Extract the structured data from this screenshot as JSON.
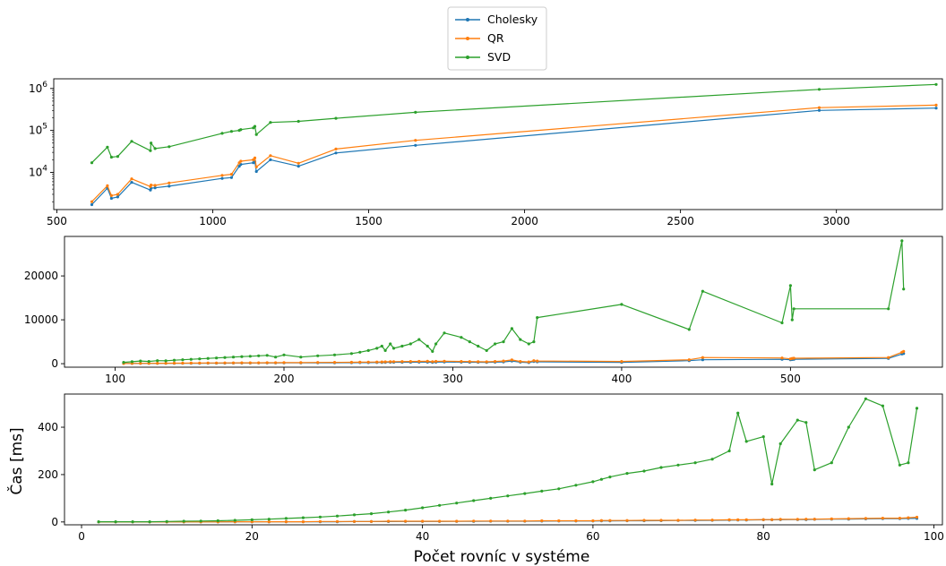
{
  "figure": {
    "xlabel": "Počet rovníc v systéme",
    "ylabel": "Čas [ms]"
  },
  "legend": [
    {
      "name": "Cholesky",
      "color": "#1f77b4"
    },
    {
      "name": "QR",
      "color": "#ff7f0e"
    },
    {
      "name": "SVD",
      "color": "#2ca02c"
    }
  ],
  "chart_data": [
    {
      "type": "line",
      "yscale": "log",
      "xlim": [
        490,
        3340
      ],
      "ylim": [
        1300,
        1700000
      ],
      "xticks": [
        500,
        1000,
        1500,
        2000,
        2500,
        3000
      ],
      "xtick_labels": [
        "500",
        "1000",
        "1500",
        "2000",
        "2500",
        "3000"
      ],
      "yticks": [
        10000,
        100000,
        1000000
      ],
      "ytick_labels": [
        "10^4",
        "10^5",
        "10^6"
      ],
      "grid": false,
      "legend": "top-center, above the figure",
      "x": [
        612,
        662,
        675,
        695,
        740,
        800,
        802,
        815,
        860,
        1030,
        1060,
        1085,
        1090,
        1130,
        1135,
        1140,
        1185,
        1275,
        1395,
        1650,
        2945,
        3320
      ],
      "series": [
        {
          "name": "Cholesky",
          "color": "#1f77b4",
          "values": [
            1700,
            4200,
            2400,
            2600,
            5800,
            3800,
            4200,
            4300,
            4700,
            7200,
            7500,
            14000,
            15500,
            17000,
            18000,
            10500,
            20000,
            14000,
            29000,
            44000,
            300000,
            340000
          ]
        },
        {
          "name": "QR",
          "color": "#ff7f0e",
          "values": [
            2000,
            4800,
            2800,
            3000,
            7000,
            4600,
            5000,
            4900,
            5600,
            8500,
            9000,
            17000,
            18500,
            20000,
            22000,
            13500,
            25000,
            16500,
            36000,
            58000,
            350000,
            400000
          ]
        },
        {
          "name": "SVD",
          "color": "#2ca02c",
          "values": [
            17000,
            40000,
            23000,
            24000,
            55000,
            33000,
            50000,
            37000,
            41000,
            85000,
            95000,
            100000,
            105000,
            115000,
            125000,
            80000,
            155000,
            165000,
            195000,
            270000,
            950000,
            1250000
          ]
        }
      ]
    },
    {
      "type": "line",
      "xlim": [
        70,
        590
      ],
      "ylim": [
        -800,
        29000
      ],
      "xticks": [
        100,
        200,
        300,
        400,
        500
      ],
      "xtick_labels": [
        "100",
        "200",
        "300",
        "400",
        "500"
      ],
      "yticks": [
        0,
        10000,
        20000
      ],
      "ytick_labels": [
        "0",
        "10000",
        "20000"
      ],
      "grid": false,
      "x": [
        105,
        110,
        115,
        120,
        125,
        130,
        135,
        140,
        145,
        150,
        155,
        160,
        165,
        170,
        175,
        180,
        185,
        190,
        195,
        200,
        210,
        220,
        230,
        240,
        245,
        250,
        255,
        258,
        260,
        263,
        265,
        270,
        275,
        280,
        285,
        288,
        290,
        295,
        305,
        310,
        315,
        320,
        325,
        330,
        335,
        340,
        345,
        348,
        350,
        400,
        440,
        448,
        495,
        500,
        501,
        502,
        558,
        566,
        567
      ],
      "series": [
        {
          "name": "Cholesky",
          "color": "#1f77b4",
          "values": [
            30,
            40,
            50,
            60,
            60,
            70,
            80,
            90,
            90,
            100,
            110,
            110,
            120,
            130,
            130,
            140,
            150,
            150,
            160,
            170,
            180,
            200,
            210,
            230,
            240,
            250,
            260,
            280,
            300,
            320,
            320,
            330,
            330,
            350,
            350,
            300,
            350,
            380,
            350,
            330,
            320,
            300,
            350,
            400,
            600,
            350,
            250,
            500,
            420,
            300,
            700,
            900,
            1000,
            900,
            950,
            1000,
            1200,
            2200,
            2300
          ]
        },
        {
          "name": "QR",
          "color": "#ff7f0e",
          "values": [
            40,
            60,
            70,
            80,
            90,
            100,
            110,
            120,
            130,
            140,
            150,
            160,
            170,
            180,
            190,
            200,
            210,
            220,
            230,
            240,
            250,
            280,
            300,
            320,
            340,
            360,
            380,
            400,
            420,
            440,
            460,
            480,
            500,
            520,
            540,
            460,
            520,
            560,
            500,
            480,
            450,
            420,
            500,
            600,
            850,
            500,
            400,
            700,
            600,
            500,
            900,
            1400,
            1300,
            1100,
            1200,
            1250,
            1400,
            2600,
            2800
          ]
        },
        {
          "name": "SVD",
          "color": "#2ca02c",
          "values": [
            300,
            450,
            600,
            500,
            700,
            650,
            800,
            900,
            1000,
            1100,
            1200,
            1300,
            1400,
            1500,
            1600,
            1700,
            1800,
            1900,
            1500,
            2000,
            1500,
            1800,
            2000,
            2300,
            2600,
            3000,
            3500,
            4000,
            3000,
            4500,
            3500,
            4000,
            4500,
            5500,
            4000,
            2800,
            4500,
            7000,
            6000,
            5000,
            4000,
            3000,
            4500,
            5000,
            8000,
            5500,
            4500,
            5000,
            10500,
            13500,
            7800,
            16500,
            9300,
            17800,
            10000,
            12500,
            12500,
            28000,
            17000
          ]
        }
      ]
    },
    {
      "type": "line",
      "xlim": [
        -2,
        101
      ],
      "ylim": [
        -12,
        540
      ],
      "xticks": [
        0,
        20,
        40,
        60,
        80,
        100
      ],
      "xtick_labels": [
        "0",
        "20",
        "40",
        "60",
        "80",
        "100"
      ],
      "yticks": [
        0,
        200,
        400
      ],
      "ytick_labels": [
        "0",
        "200",
        "400"
      ],
      "grid": false,
      "x": [
        2,
        4,
        6,
        8,
        10,
        12,
        14,
        16,
        18,
        20,
        22,
        24,
        26,
        28,
        30,
        32,
        34,
        36,
        38,
        40,
        42,
        44,
        46,
        48,
        50,
        52,
        54,
        56,
        58,
        60,
        61,
        62,
        64,
        66,
        68,
        70,
        72,
        74,
        76,
        77,
        78,
        80,
        81,
        82,
        84,
        85,
        86,
        88,
        90,
        92,
        94,
        96,
        97,
        98
      ],
      "series": [
        {
          "name": "Cholesky",
          "color": "#1f77b4",
          "values": [
            0,
            0,
            0,
            0,
            0,
            0,
            0,
            0,
            0.5,
            0.5,
            0.5,
            1,
            1,
            1,
            1,
            1.5,
            1.5,
            1.5,
            2,
            2,
            2,
            2.5,
            2.5,
            3,
            3,
            3,
            3.5,
            4,
            4,
            4,
            4.5,
            4.5,
            5,
            5,
            5.5,
            6,
            6.5,
            7,
            7.5,
            8,
            8,
            9,
            9,
            9.5,
            10,
            10,
            11,
            12,
            12,
            13,
            14,
            14,
            15,
            15
          ]
        },
        {
          "name": "QR",
          "color": "#ff7f0e",
          "values": [
            0,
            0,
            0,
            0,
            0,
            0,
            0,
            0,
            1,
            1,
            1,
            1,
            1,
            2,
            2,
            2,
            2,
            3,
            3,
            3,
            3,
            3,
            4,
            4,
            4,
            4,
            5,
            5,
            5,
            5,
            6,
            6,
            6,
            7,
            7,
            7,
            8,
            8,
            9,
            9,
            9,
            10,
            10,
            11,
            11,
            12,
            12,
            13,
            14,
            15,
            16,
            16,
            18,
            20
          ]
        },
        {
          "name": "SVD",
          "color": "#2ca02c",
          "values": [
            1,
            1,
            1,
            1,
            2,
            3,
            4,
            5,
            7,
            9,
            12,
            15,
            18,
            21,
            25,
            30,
            35,
            42,
            50,
            60,
            70,
            80,
            90,
            100,
            110,
            120,
            130,
            140,
            155,
            170,
            180,
            190,
            205,
            215,
            230,
            240,
            250,
            265,
            300,
            460,
            340,
            360,
            160,
            330,
            430,
            420,
            220,
            250,
            400,
            520,
            490,
            240,
            250,
            480
          ]
        }
      ]
    }
  ]
}
